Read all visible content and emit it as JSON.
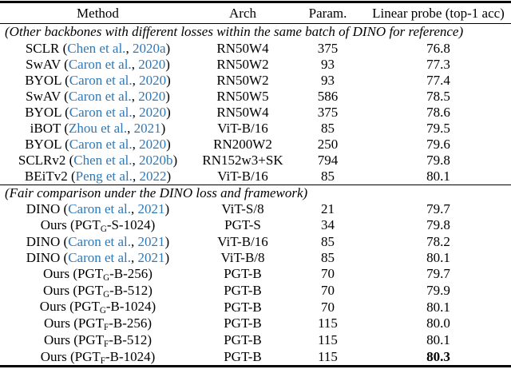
{
  "colors": {
    "citation_blue": "#2e78b8",
    "text": "#000000",
    "rule": "#000000",
    "background": "#ffffff"
  },
  "table": {
    "headers": [
      "Method",
      "Arch",
      "Param.",
      "Linear probe (top-1 acc)"
    ],
    "sections": [
      {
        "title": "(Other backbones with different losses within the same batch of DINO for reference)",
        "rows": [
          {
            "method": [
              [
                "t",
                "SCLR ("
              ],
              [
                "c",
                "Chen et al."
              ],
              [
                "t",
                ", "
              ],
              [
                "c",
                "2020a"
              ],
              [
                "t",
                ")"
              ]
            ],
            "arch": "RN50W4",
            "param": "375",
            "acc": "76.8",
            "bold": false
          },
          {
            "method": [
              [
                "t",
                "SwAV ("
              ],
              [
                "c",
                "Caron et al."
              ],
              [
                "t",
                ", "
              ],
              [
                "c",
                "2020"
              ],
              [
                "t",
                ")"
              ]
            ],
            "arch": "RN50W2",
            "param": "93",
            "acc": "77.3",
            "bold": false
          },
          {
            "method": [
              [
                "t",
                "BYOL ("
              ],
              [
                "c",
                "Caron et al."
              ],
              [
                "t",
                ", "
              ],
              [
                "c",
                "2020"
              ],
              [
                "t",
                ")"
              ]
            ],
            "arch": "RN50W2",
            "param": "93",
            "acc": "77.4",
            "bold": false
          },
          {
            "method": [
              [
                "t",
                "SwAV ("
              ],
              [
                "c",
                "Caron et al."
              ],
              [
                "t",
                ", "
              ],
              [
                "c",
                "2020"
              ],
              [
                "t",
                ")"
              ]
            ],
            "arch": "RN50W5",
            "param": "586",
            "acc": "78.5",
            "bold": false
          },
          {
            "method": [
              [
                "t",
                "BYOL ("
              ],
              [
                "c",
                "Caron et al."
              ],
              [
                "t",
                ", "
              ],
              [
                "c",
                "2020"
              ],
              [
                "t",
                ")"
              ]
            ],
            "arch": "RN50W4",
            "param": "375",
            "acc": "78.6",
            "bold": false
          },
          {
            "method": [
              [
                "t",
                "iBOT ("
              ],
              [
                "c",
                "Zhou et al."
              ],
              [
                "t",
                ", "
              ],
              [
                "c",
                "2021"
              ],
              [
                "t",
                ")"
              ]
            ],
            "arch": "ViT-B/16",
            "param": "85",
            "acc": "79.5",
            "bold": false
          },
          {
            "method": [
              [
                "t",
                "BYOL ("
              ],
              [
                "c",
                "Caron et al."
              ],
              [
                "t",
                ", "
              ],
              [
                "c",
                "2020"
              ],
              [
                "t",
                ")"
              ]
            ],
            "arch": "RN200W2",
            "param": "250",
            "acc": "79.6",
            "bold": false
          },
          {
            "method": [
              [
                "t",
                "SCLRv2 ("
              ],
              [
                "c",
                "Chen et al."
              ],
              [
                "t",
                ", "
              ],
              [
                "c",
                "2020b"
              ],
              [
                "t",
                ")"
              ]
            ],
            "arch": "RN152w3+SK",
            "param": "794",
            "acc": "79.8",
            "bold": false
          },
          {
            "method": [
              [
                "t",
                "BEiTv2 ("
              ],
              [
                "c",
                "Peng et al."
              ],
              [
                "t",
                ", "
              ],
              [
                "c",
                "2022"
              ],
              [
                "t",
                ")"
              ]
            ],
            "arch": "ViT-B/16",
            "param": "85",
            "acc": "80.1",
            "bold": false
          }
        ]
      },
      {
        "title": "(Fair comparison under the DINO loss and framework)",
        "rows": [
          {
            "method": [
              [
                "t",
                "DINO ("
              ],
              [
                "c",
                "Caron et al."
              ],
              [
                "t",
                ", "
              ],
              [
                "c",
                "2021"
              ],
              [
                "t",
                ")"
              ]
            ],
            "arch": "ViT-S/8",
            "param": "21",
            "acc": "79.7",
            "bold": false
          },
          {
            "method": [
              [
                "t",
                "Ours (PGT"
              ],
              [
                "s",
                "G"
              ],
              [
                "t",
                "-S-1024)"
              ]
            ],
            "arch": "PGT-S",
            "param": "34",
            "acc": "79.8",
            "bold": false
          },
          {
            "method": [
              [
                "t",
                "DINO ("
              ],
              [
                "c",
                "Caron et al."
              ],
              [
                "t",
                ", "
              ],
              [
                "c",
                "2021"
              ],
              [
                "t",
                ")"
              ]
            ],
            "arch": "ViT-B/16",
            "param": "85",
            "acc": "78.2",
            "bold": false
          },
          {
            "method": [
              [
                "t",
                "DINO ("
              ],
              [
                "c",
                "Caron et al."
              ],
              [
                "t",
                ", "
              ],
              [
                "c",
                "2021"
              ],
              [
                "t",
                ")"
              ]
            ],
            "arch": "ViT-B/8",
            "param": "85",
            "acc": "80.1",
            "bold": false
          },
          {
            "method": [
              [
                "t",
                "Ours (PGT"
              ],
              [
                "s",
                "G"
              ],
              [
                "t",
                "-B-256)"
              ]
            ],
            "arch": "PGT-B",
            "param": "70",
            "acc": "79.7",
            "bold": false
          },
          {
            "method": [
              [
                "t",
                "Ours (PGT"
              ],
              [
                "s",
                "G"
              ],
              [
                "t",
                "-B-512)"
              ]
            ],
            "arch": "PGT-B",
            "param": "70",
            "acc": "79.9",
            "bold": false
          },
          {
            "method": [
              [
                "t",
                "Ours (PGT"
              ],
              [
                "s",
                "G"
              ],
              [
                "t",
                "-B-1024)"
              ]
            ],
            "arch": "PGT-B",
            "param": "70",
            "acc": "80.1",
            "bold": false
          },
          {
            "method": [
              [
                "t",
                "Ours (PGT"
              ],
              [
                "s",
                "F"
              ],
              [
                "t",
                "-B-256)"
              ]
            ],
            "arch": "PGT-B",
            "param": "115",
            "acc": "80.0",
            "bold": false
          },
          {
            "method": [
              [
                "t",
                "Ours (PGT"
              ],
              [
                "s",
                "F"
              ],
              [
                "t",
                "-B-512)"
              ]
            ],
            "arch": "PGT-B",
            "param": "115",
            "acc": "80.1",
            "bold": false
          },
          {
            "method": [
              [
                "t",
                "Ours (PGT"
              ],
              [
                "s",
                "F"
              ],
              [
                "t",
                "-B-1024)"
              ]
            ],
            "arch": "PGT-B",
            "param": "115",
            "acc": "80.3",
            "bold": true
          }
        ]
      }
    ]
  }
}
